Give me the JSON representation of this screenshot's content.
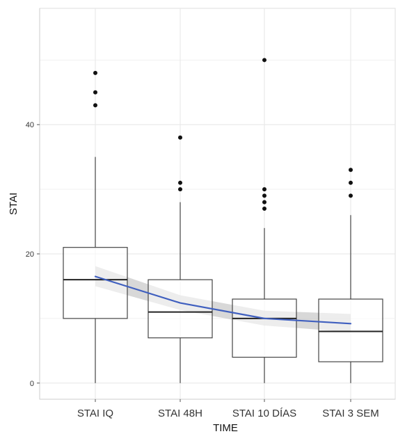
{
  "chart_data": {
    "type": "boxplot",
    "xlabel": "TIME",
    "ylabel": "STAI",
    "categories": [
      "STAI IQ",
      "STAI 48H",
      "STAI 10 DÍAS",
      "STAI 3 SEM"
    ],
    "yticks": [
      0,
      20,
      40
    ],
    "ylim": [
      -2.5,
      58
    ],
    "grid": true,
    "boxes": [
      {
        "category": "STAI IQ",
        "whisker_low": 0,
        "q1": 10,
        "median": 16,
        "q3": 21,
        "whisker_high": 35,
        "outliers": [
          43,
          45,
          48
        ]
      },
      {
        "category": "STAI 48H",
        "whisker_low": 0,
        "q1": 7,
        "median": 11,
        "q3": 16,
        "whisker_high": 28,
        "outliers": [
          30,
          31,
          38
        ]
      },
      {
        "category": "STAI 10 DÍAS",
        "whisker_low": 0,
        "q1": 4,
        "median": 10,
        "q3": 13,
        "whisker_high": 24,
        "outliers": [
          27,
          28,
          29,
          30,
          50
        ]
      },
      {
        "category": "STAI 3 SEM",
        "whisker_low": 0,
        "q1": 3.3,
        "median": 8,
        "q3": 13,
        "whisker_high": 26,
        "outliers": [
          29,
          31,
          33
        ]
      }
    ],
    "trend": {
      "x": [
        "STAI IQ",
        "STAI 48H",
        "STAI 10 DÍAS",
        "STAI 3 SEM"
      ],
      "y": [
        16.5,
        12.4,
        10.0,
        9.2
      ],
      "ci_low": [
        15.0,
        11.3,
        8.9,
        7.9
      ],
      "ci_high": [
        18.1,
        13.6,
        11.2,
        10.7
      ],
      "color": "#3f5fbf",
      "band_color": "#c7c7c7"
    }
  }
}
